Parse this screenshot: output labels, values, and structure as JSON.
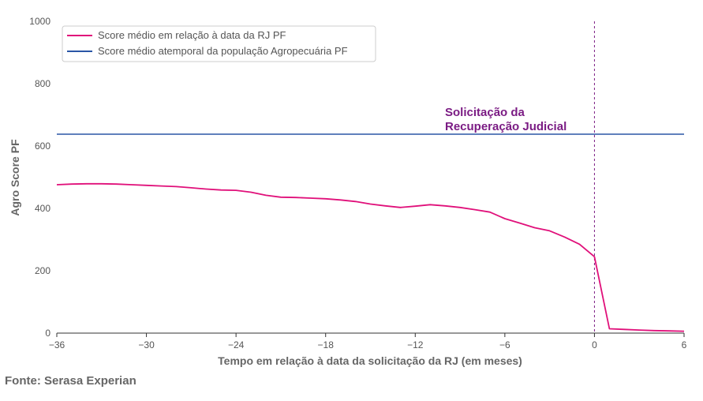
{
  "chart_data": {
    "type": "line",
    "xlabel": "Tempo em relação à data da solicitação da RJ (em meses)",
    "ylabel": "Agro Score PF",
    "xlim": [
      -36,
      6
    ],
    "ylim": [
      0,
      1000
    ],
    "xticks": [
      -36,
      -30,
      -24,
      -18,
      -12,
      -6,
      0,
      6
    ],
    "xtick_labels": [
      "−36",
      "−30",
      "−24",
      "−18",
      "−12",
      "−6",
      "0",
      "6"
    ],
    "yticks": [
      0,
      200,
      400,
      600,
      800,
      1000
    ],
    "ytick_labels": [
      "0",
      "200",
      "400",
      "600",
      "800",
      "1000"
    ],
    "grid": false,
    "legend_position": "top-left",
    "series": [
      {
        "name": "Score médio em relação à data da RJ PF",
        "color": "#e0107a",
        "x": [
          -36,
          -35,
          -34,
          -33,
          -32,
          -31,
          -30,
          -29,
          -28,
          -27,
          -26,
          -25,
          -24,
          -23,
          -22,
          -21,
          -20,
          -19,
          -18,
          -17,
          -16,
          -15,
          -14,
          -13,
          -12,
          -11,
          -10,
          -9,
          -8,
          -7,
          -6,
          -5,
          -4,
          -3,
          -2,
          -1,
          0,
          1,
          2,
          3,
          4,
          5,
          6
        ],
        "values": [
          476,
          478,
          479,
          479,
          478,
          476,
          474,
          472,
          470,
          466,
          462,
          459,
          458,
          452,
          442,
          436,
          435,
          433,
          431,
          427,
          422,
          414,
          408,
          403,
          407,
          412,
          408,
          403,
          396,
          388,
          367,
          353,
          338,
          328,
          308,
          285,
          245,
          14,
          12,
          10,
          8,
          7,
          6
        ]
      },
      {
        "name": "Score médio atemporal da população Agropecuária PF",
        "color": "#2a56a6",
        "x": [
          -36,
          6
        ],
        "values": [
          638,
          638
        ]
      }
    ],
    "annotations": [
      {
        "x": 0,
        "type": "vline",
        "color": "#7b1c84",
        "lines": [
          "Solicitação da",
          "Recuperação Judicial"
        ]
      }
    ]
  },
  "source": "Fonte: Serasa Experian"
}
